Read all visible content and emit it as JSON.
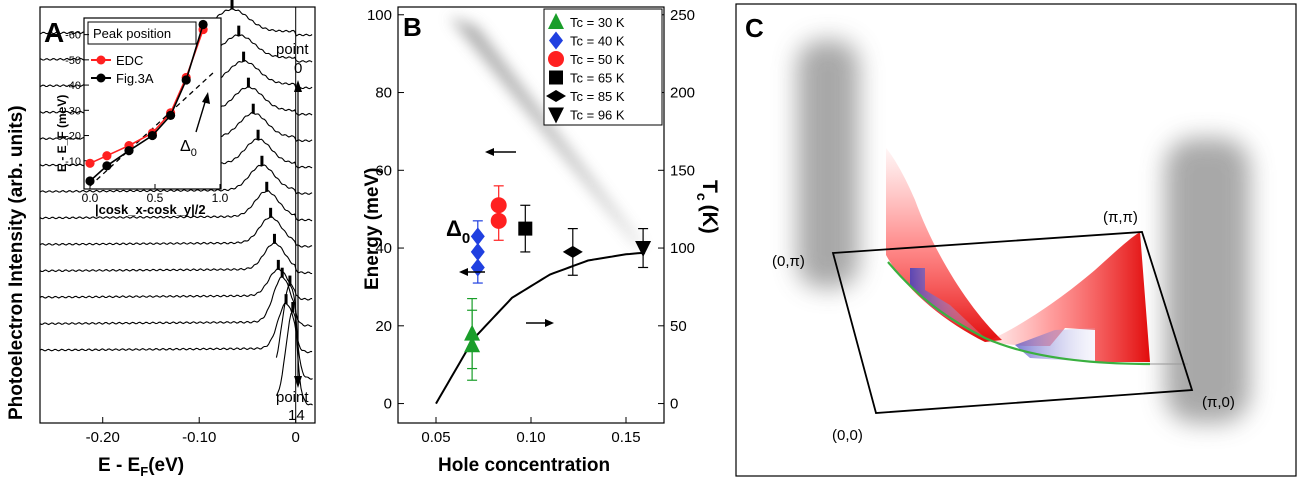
{
  "panels": {
    "a": "A",
    "b": "B",
    "c": "C"
  },
  "chart_data": [
    {
      "panel": "A",
      "type": "line",
      "xlabel_main": "E - E",
      "xlabel_sub": "F",
      "xlabel_tail": "(eV)",
      "ylabel": "Photoelectron Intensity (arb. units)",
      "xlim": [
        -0.265,
        0.02
      ],
      "xticks": [
        -0.2,
        -0.1,
        0
      ],
      "xtick_labels": [
        "-0.20",
        "-0.10",
        "0"
      ],
      "point_top": [
        "point",
        "0"
      ],
      "point_bottom": [
        "point",
        "14"
      ],
      "peak_energies_eV": [
        -0.003,
        -0.006,
        -0.01,
        -0.014,
        -0.018,
        -0.022,
        -0.026,
        -0.03,
        -0.035,
        -0.039,
        -0.044,
        -0.049,
        -0.054,
        -0.059,
        -0.066
      ],
      "inset": {
        "type": "line",
        "title": "Peak position",
        "xlabel": "|cosk_x-cosk_y|/2",
        "ylabel": "E - E_F (meV)",
        "xlim": [
          0,
          1.0
        ],
        "ylim": [
          0,
          -65
        ],
        "xticks": [
          0.0,
          0.5,
          1.0
        ],
        "xtick_labels": [
          "0.0",
          "0.5",
          "1.0"
        ],
        "yticks": [
          -10,
          -20,
          -30,
          -40,
          -50,
          -60
        ],
        "ytick_labels": [
          "-10",
          "-20",
          "-30",
          "-40",
          "-50",
          "-60"
        ],
        "series": [
          {
            "name": "EDC",
            "color": "#ff2020",
            "x": [
              0.0,
              0.13,
              0.3,
              0.48,
              0.62,
              0.74,
              0.87
            ],
            "y": [
              -9,
              -12,
              -16,
              -21,
              -29,
              -43,
              -62
            ]
          },
          {
            "name": "Fig.3A",
            "color": "#000000",
            "x": [
              0.0,
              0.13,
              0.3,
              0.48,
              0.62,
              0.74,
              0.87
            ],
            "y": [
              -2,
              -8,
              -14,
              -20,
              -28,
              -42,
              -64
            ]
          }
        ],
        "dashed_line": {
          "x": [
            0.0,
            0.95
          ],
          "y": [
            0,
            -45
          ]
        },
        "annotation": "Δ",
        "annotation_sub": "0"
      }
    },
    {
      "panel": "B",
      "type": "scatter",
      "xlabel": "Hole concentration",
      "ylabel": "Energy (meV)",
      "y2label_main": "T",
      "y2label_sub": "c",
      "y2label_tail": "(K)",
      "xlim": [
        0.03,
        0.17
      ],
      "ylim": [
        -5,
        102
      ],
      "y2lim": [
        -12.5,
        255
      ],
      "xticks": [
        0.05,
        0.1,
        0.15
      ],
      "xtick_labels": [
        "0.05",
        "0.10",
        "0.15"
      ],
      "yticks": [
        0,
        20,
        40,
        60,
        80,
        100
      ],
      "ytick_labels": [
        "0",
        "20",
        "40",
        "60",
        "80",
        "100"
      ],
      "y2ticks": [
        0,
        50,
        100,
        150,
        200,
        250
      ],
      "y2tick_labels": [
        "0",
        "50",
        "100",
        "150",
        "200",
        "250"
      ],
      "series": [
        {
          "name": "Tc = 30 K",
          "marker": "triangle-up",
          "color": "#1a9e2a",
          "x": [
            0.069,
            0.069
          ],
          "y": [
            15,
            18
          ],
          "err": [
            9,
            9
          ]
        },
        {
          "name": "Tc = 40 K",
          "marker": "diamond",
          "color": "#2040e0",
          "x": [
            0.072,
            0.072,
            0.072
          ],
          "y": [
            35,
            39,
            43
          ],
          "err": [
            4,
            4,
            4
          ]
        },
        {
          "name": "Tc = 50 K",
          "marker": "circle",
          "color": "#ff2020",
          "x": [
            0.083,
            0.083
          ],
          "y": [
            47,
            51
          ],
          "err": [
            5,
            5
          ]
        },
        {
          "name": "Tc = 65 K",
          "marker": "square",
          "color": "#000000",
          "x": [
            0.097
          ],
          "y": [
            45
          ],
          "err": [
            6
          ]
        },
        {
          "name": "Tc = 85 K",
          "marker": "diamond-wide",
          "color": "#000000",
          "x": [
            0.122
          ],
          "y": [
            39
          ],
          "err": [
            6
          ]
        },
        {
          "name": "Tc = 96 K",
          "marker": "triangle-down",
          "color": "#000000",
          "x": [
            0.159
          ],
          "y": [
            40
          ],
          "err": [
            5
          ]
        }
      ],
      "tc_curve": {
        "x": [
          0.05,
          0.07,
          0.09,
          0.11,
          0.13,
          0.15,
          0.16
        ],
        "y2": [
          0,
          42,
          68,
          83,
          92,
          96,
          97
        ]
      },
      "gap_band": {
        "x": [
          0.06,
          0.158
        ],
        "y": [
          98,
          40
        ]
      },
      "annotation": "Δ",
      "annotation_sub": "0"
    }
  ],
  "diagram_c": {
    "labels": [
      "(0,π)",
      "(π,π)",
      "(0,0)",
      "(π,0)"
    ]
  }
}
